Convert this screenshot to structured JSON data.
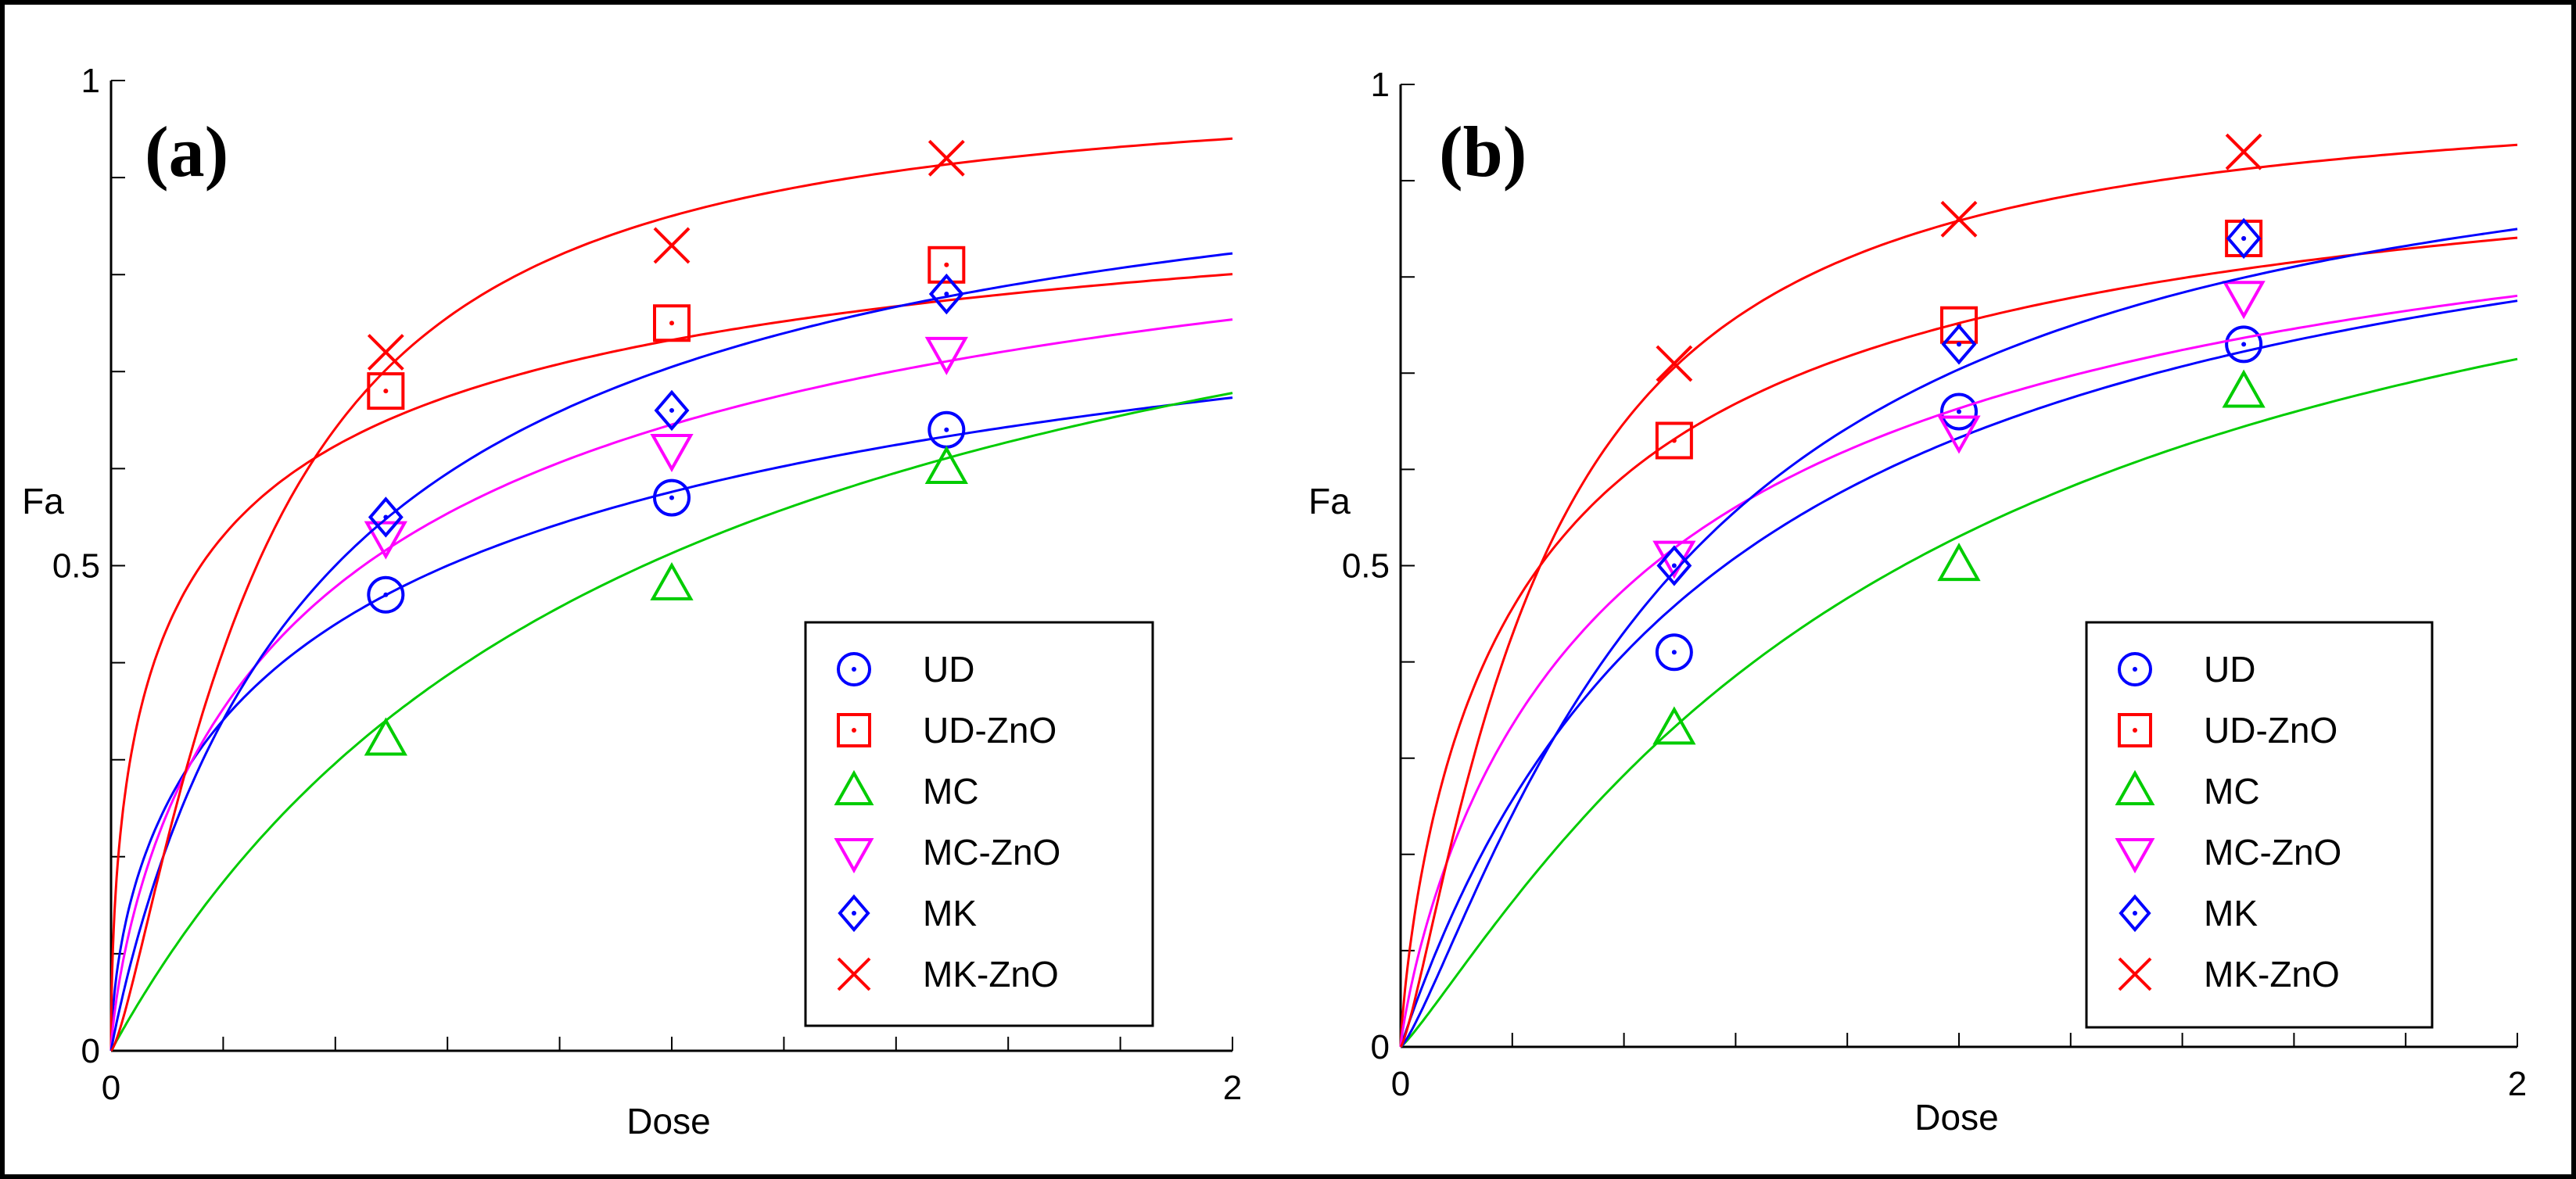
{
  "chart_data": [
    {
      "type": "scatter",
      "panel_label": "(a)",
      "xlabel": "Dose",
      "ylabel": "Fa",
      "xlim": [
        0,
        2
      ],
      "ylim": [
        0,
        1
      ],
      "x_tick_labels": [
        {
          "value": 0,
          "label": "0"
        },
        {
          "value": 2,
          "label": "2"
        }
      ],
      "y_tick_labels": [
        {
          "value": 0,
          "label": "0"
        },
        {
          "value": 0.5,
          "label": "0.5"
        },
        {
          "value": 1,
          "label": "1"
        }
      ],
      "x_minor_ticks": 10,
      "y_minor_ticks": 10,
      "legend_position": "bottom-right",
      "series": [
        {
          "name": "UD",
          "marker": "circle",
          "color": "#0000ff",
          "x": [
            0.49,
            1.0,
            1.49
          ],
          "y": [
            0.47,
            0.57,
            0.64
          ],
          "fit_dm": 0.6,
          "fit_m": 0.6
        },
        {
          "name": "UD-ZnO",
          "marker": "square",
          "color": "#ff0000",
          "x": [
            0.49,
            1.0,
            1.49
          ],
          "y": [
            0.68,
            0.75,
            0.81
          ],
          "fit_dm": 0.16,
          "fit_m": 0.55
        },
        {
          "name": "MC",
          "marker": "triangle-up",
          "color": "#00cc00",
          "x": [
            0.49,
            1.0,
            1.49
          ],
          "y": [
            0.32,
            0.48,
            0.6
          ],
          "fit_dm": 0.95,
          "fit_m": 1.0
        },
        {
          "name": "MC-ZnO",
          "marker": "triangle-down",
          "color": "#ff00ff",
          "x": [
            0.49,
            1.0,
            1.49
          ],
          "y": [
            0.53,
            0.62,
            0.72
          ],
          "fit_dm": 0.45,
          "fit_m": 0.75
        },
        {
          "name": "MK",
          "marker": "diamond",
          "color": "#0000ff",
          "x": [
            0.49,
            1.0,
            1.49
          ],
          "y": [
            0.55,
            0.66,
            0.78
          ],
          "fit_dm": 0.4,
          "fit_m": 0.95
        },
        {
          "name": "MK-ZnO",
          "marker": "cross",
          "color": "#ff0000",
          "x": [
            0.49,
            1.0,
            1.49
          ],
          "y": [
            0.72,
            0.83,
            0.92
          ],
          "fit_dm": 0.26,
          "fit_m": 1.35
        }
      ]
    },
    {
      "type": "scatter",
      "panel_label": "(b)",
      "xlabel": "Dose",
      "ylabel": "Fa",
      "xlim": [
        0,
        2
      ],
      "ylim": [
        0,
        1
      ],
      "x_tick_labels": [
        {
          "value": 0,
          "label": "0"
        },
        {
          "value": 2,
          "label": "2"
        }
      ],
      "y_tick_labels": [
        {
          "value": 0,
          "label": "0"
        },
        {
          "value": 0.5,
          "label": "0.5"
        },
        {
          "value": 1,
          "label": "1"
        }
      ],
      "x_minor_ticks": 10,
      "y_minor_ticks": 10,
      "legend_position": "bottom-right",
      "series": [
        {
          "name": "UD",
          "marker": "circle",
          "color": "#0000ff",
          "x": [
            0.49,
            1.0,
            1.51
          ],
          "y": [
            0.41,
            0.66,
            0.73
          ],
          "fit_dm": 0.58,
          "fit_m": 1.0
        },
        {
          "name": "UD-ZnO",
          "marker": "square",
          "color": "#ff0000",
          "x": [
            0.49,
            1.0,
            1.51
          ],
          "y": [
            0.63,
            0.75,
            0.84
          ],
          "fit_dm": 0.25,
          "fit_m": 0.8
        },
        {
          "name": "MC",
          "marker": "triangle-up",
          "color": "#00cc00",
          "x": [
            0.49,
            1.0,
            1.51
          ],
          "y": [
            0.33,
            0.5,
            0.68
          ],
          "fit_dm": 0.9,
          "fit_m": 1.15
        },
        {
          "name": "MC-ZnO",
          "marker": "triangle-down",
          "color": "#ff00ff",
          "x": [
            0.49,
            1.0,
            1.51
          ],
          "y": [
            0.51,
            0.64,
            0.78
          ],
          "fit_dm": 0.45,
          "fit_m": 0.85
        },
        {
          "name": "MK",
          "marker": "diamond",
          "color": "#0000ff",
          "x": [
            0.49,
            1.0,
            1.51
          ],
          "y": [
            0.5,
            0.73,
            0.84
          ],
          "fit_dm": 0.5,
          "fit_m": 1.25
        },
        {
          "name": "MK-ZnO",
          "marker": "cross",
          "color": "#ff0000",
          "x": [
            0.49,
            1.0,
            1.51
          ],
          "y": [
            0.71,
            0.86,
            0.93
          ],
          "fit_dm": 0.25,
          "fit_m": 1.3
        }
      ]
    }
  ]
}
